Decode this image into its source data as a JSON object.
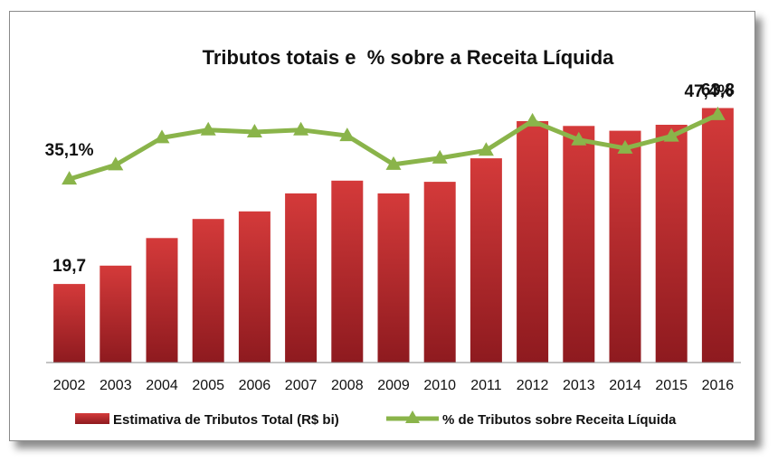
{
  "chart_data": {
    "type": "bar+line",
    "title": "Tributos totais e  % sobre a Receita Líquida",
    "categories": [
      "2002",
      "2003",
      "2004",
      "2005",
      "2006",
      "2007",
      "2008",
      "2009",
      "2010",
      "2011",
      "2012",
      "2013",
      "2014",
      "2015",
      "2016"
    ],
    "series": [
      {
        "name": "Estimativa de Tributos Total (R$ bi)",
        "type": "bar",
        "color": "#c0282d",
        "values": [
          19.7,
          24.3,
          31.2,
          36.0,
          37.9,
          42.4,
          45.6,
          42.4,
          45.3,
          51.2,
          60.5,
          59.3,
          58.1,
          59.6,
          63.8
        ]
      },
      {
        "name": "% de Tributos sobre Receita Líquida",
        "type": "line",
        "color": "#8ab44a",
        "values": [
          35.1,
          37.8,
          43.0,
          44.5,
          44.1,
          44.5,
          43.4,
          37.9,
          39.1,
          40.6,
          46.2,
          42.6,
          41.0,
          43.3,
          47.4
        ]
      }
    ],
    "data_labels": {
      "bar_first": "19,7",
      "bar_last": "63,8",
      "line_first": "35,1%",
      "line_last": "47,4%"
    },
    "ylim_bar": [
      0,
      80
    ],
    "ylim_line": [
      0,
      55
    ],
    "grid": false,
    "legend_position": "bottom"
  }
}
